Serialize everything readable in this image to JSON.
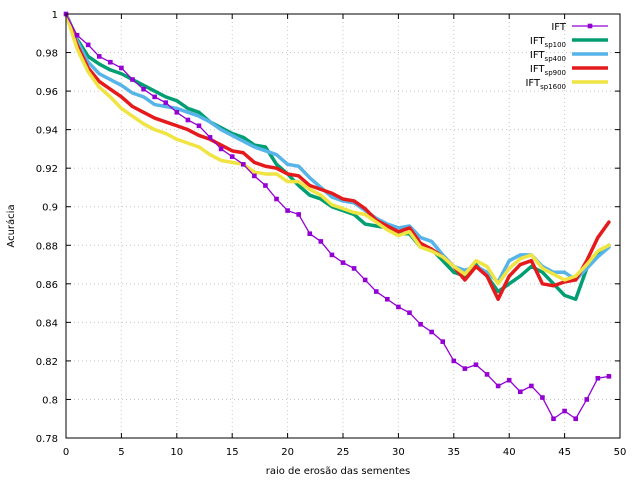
{
  "chart_data": {
    "type": "line",
    "xlabel": "raio de erosão das sementes",
    "ylabel": "Acurácia",
    "xlim": [
      0,
      50
    ],
    "ylim": [
      0.78,
      1.0
    ],
    "xticks": [
      0,
      5,
      10,
      15,
      20,
      25,
      30,
      35,
      40,
      45,
      50
    ],
    "xtick_labels": [
      "0",
      "5",
      "10",
      "15",
      "20",
      "25",
      "30",
      "35",
      "40",
      "45",
      "50"
    ],
    "yticks": [
      0.78,
      0.8,
      0.82,
      0.84,
      0.86,
      0.88,
      0.9,
      0.92,
      0.94,
      0.96,
      0.98,
      1.0
    ],
    "ytick_labels": [
      "0.78",
      "0.8",
      "0.82",
      "0.84",
      "0.86",
      "0.88",
      "0.9",
      "0.92",
      "0.94",
      "0.96",
      "0.98",
      "1"
    ],
    "grid": true,
    "legend_position": "top-right",
    "series": [
      {
        "name": "IFT",
        "name_base": "IFT",
        "name_sub": "",
        "color": "#9400d3",
        "marker": "square",
        "x": [
          0,
          1,
          2,
          3,
          4,
          5,
          6,
          7,
          8,
          9,
          10,
          11,
          12,
          13,
          14,
          15,
          16,
          17,
          18,
          19,
          20,
          21,
          22,
          23,
          24,
          25,
          26,
          27,
          28,
          29,
          30,
          31,
          32,
          33,
          34,
          35,
          36,
          37,
          38,
          39,
          40,
          41,
          42,
          43,
          44,
          45,
          46,
          47,
          48,
          49
        ],
        "y": [
          1.0,
          0.989,
          0.984,
          0.978,
          0.975,
          0.972,
          0.966,
          0.961,
          0.957,
          0.954,
          0.949,
          0.945,
          0.942,
          0.936,
          0.93,
          0.926,
          0.922,
          0.916,
          0.911,
          0.904,
          0.898,
          0.896,
          0.886,
          0.882,
          0.875,
          0.871,
          0.868,
          0.862,
          0.856,
          0.852,
          0.848,
          0.845,
          0.839,
          0.835,
          0.83,
          0.82,
          0.816,
          0.818,
          0.813,
          0.807,
          0.81,
          0.804,
          0.807,
          0.801,
          0.79,
          0.794,
          0.79,
          0.8,
          0.811,
          0.812
        ]
      },
      {
        "name": "IFTsp100",
        "name_base": "IFT",
        "name_sub": "sp100",
        "color": "#009e73",
        "marker": "none",
        "x": [
          0,
          1,
          2,
          3,
          4,
          5,
          6,
          7,
          8,
          9,
          10,
          11,
          12,
          13,
          14,
          15,
          16,
          17,
          18,
          19,
          20,
          21,
          22,
          23,
          24,
          25,
          26,
          27,
          28,
          29,
          30,
          31,
          32,
          33,
          34,
          35,
          36,
          37,
          38,
          39,
          40,
          41,
          42,
          43,
          44,
          45,
          46,
          47,
          48,
          49
        ],
        "y": [
          1.0,
          0.987,
          0.978,
          0.974,
          0.971,
          0.969,
          0.966,
          0.963,
          0.96,
          0.957,
          0.955,
          0.951,
          0.949,
          0.944,
          0.941,
          0.938,
          0.936,
          0.932,
          0.931,
          0.922,
          0.917,
          0.911,
          0.906,
          0.904,
          0.9,
          0.898,
          0.896,
          0.891,
          0.89,
          0.889,
          0.886,
          0.886,
          0.879,
          0.878,
          0.872,
          0.866,
          0.864,
          0.87,
          0.864,
          0.856,
          0.86,
          0.864,
          0.869,
          0.866,
          0.86,
          0.854,
          0.852,
          0.868,
          0.876,
          0.88
        ]
      },
      {
        "name": "IFTsp400",
        "name_base": "IFT",
        "name_sub": "sp400",
        "color": "#56b4e9",
        "marker": "none",
        "x": [
          0,
          1,
          2,
          3,
          4,
          5,
          6,
          7,
          8,
          9,
          10,
          11,
          12,
          13,
          14,
          15,
          16,
          17,
          18,
          19,
          20,
          21,
          22,
          23,
          24,
          25,
          26,
          27,
          28,
          29,
          30,
          31,
          32,
          33,
          34,
          35,
          36,
          37,
          38,
          39,
          40,
          41,
          42,
          43,
          44,
          45,
          46,
          47,
          48,
          49
        ],
        "y": [
          1.0,
          0.986,
          0.975,
          0.969,
          0.966,
          0.963,
          0.959,
          0.957,
          0.953,
          0.952,
          0.951,
          0.949,
          0.947,
          0.944,
          0.94,
          0.937,
          0.934,
          0.931,
          0.929,
          0.927,
          0.922,
          0.921,
          0.915,
          0.91,
          0.905,
          0.903,
          0.902,
          0.898,
          0.894,
          0.891,
          0.889,
          0.89,
          0.884,
          0.882,
          0.875,
          0.869,
          0.867,
          0.869,
          0.866,
          0.861,
          0.872,
          0.875,
          0.875,
          0.869,
          0.866,
          0.866,
          0.862,
          0.868,
          0.874,
          0.879
        ]
      },
      {
        "name": "IFTsp900",
        "name_base": "IFT",
        "name_sub": "sp900",
        "color": "#e41a1c",
        "marker": "none",
        "x": [
          0,
          1,
          2,
          3,
          4,
          5,
          6,
          7,
          8,
          9,
          10,
          11,
          12,
          13,
          14,
          15,
          16,
          17,
          18,
          19,
          20,
          21,
          22,
          23,
          24,
          25,
          26,
          27,
          28,
          29,
          30,
          31,
          32,
          33,
          34,
          35,
          36,
          37,
          38,
          39,
          40,
          41,
          42,
          43,
          44,
          45,
          46,
          47,
          48,
          49
        ],
        "y": [
          1.0,
          0.984,
          0.972,
          0.965,
          0.961,
          0.957,
          0.952,
          0.949,
          0.946,
          0.944,
          0.942,
          0.94,
          0.937,
          0.935,
          0.932,
          0.929,
          0.928,
          0.923,
          0.921,
          0.92,
          0.917,
          0.916,
          0.911,
          0.909,
          0.907,
          0.904,
          0.903,
          0.899,
          0.893,
          0.89,
          0.887,
          0.889,
          0.881,
          0.878,
          0.874,
          0.869,
          0.862,
          0.869,
          0.864,
          0.852,
          0.864,
          0.87,
          0.872,
          0.86,
          0.859,
          0.861,
          0.862,
          0.872,
          0.884,
          0.892
        ]
      },
      {
        "name": "IFTsp1600",
        "name_base": "IFT",
        "name_sub": "sp1600",
        "color": "#f0e442",
        "marker": "none",
        "x": [
          0,
          1,
          2,
          3,
          4,
          5,
          6,
          7,
          8,
          9,
          10,
          11,
          12,
          13,
          14,
          15,
          16,
          17,
          18,
          19,
          20,
          21,
          22,
          23,
          24,
          25,
          26,
          27,
          28,
          29,
          30,
          31,
          32,
          33,
          34,
          35,
          36,
          37,
          38,
          39,
          40,
          41,
          42,
          43,
          44,
          45,
          46,
          47,
          48,
          49
        ],
        "y": [
          1.0,
          0.982,
          0.97,
          0.962,
          0.957,
          0.951,
          0.947,
          0.943,
          0.94,
          0.938,
          0.935,
          0.933,
          0.931,
          0.927,
          0.924,
          0.923,
          0.922,
          0.918,
          0.917,
          0.917,
          0.913,
          0.913,
          0.909,
          0.906,
          0.901,
          0.899,
          0.897,
          0.896,
          0.892,
          0.888,
          0.885,
          0.887,
          0.879,
          0.877,
          0.874,
          0.869,
          0.865,
          0.872,
          0.869,
          0.86,
          0.868,
          0.873,
          0.875,
          0.868,
          0.865,
          0.862,
          0.864,
          0.87,
          0.877,
          0.88
        ]
      }
    ]
  }
}
